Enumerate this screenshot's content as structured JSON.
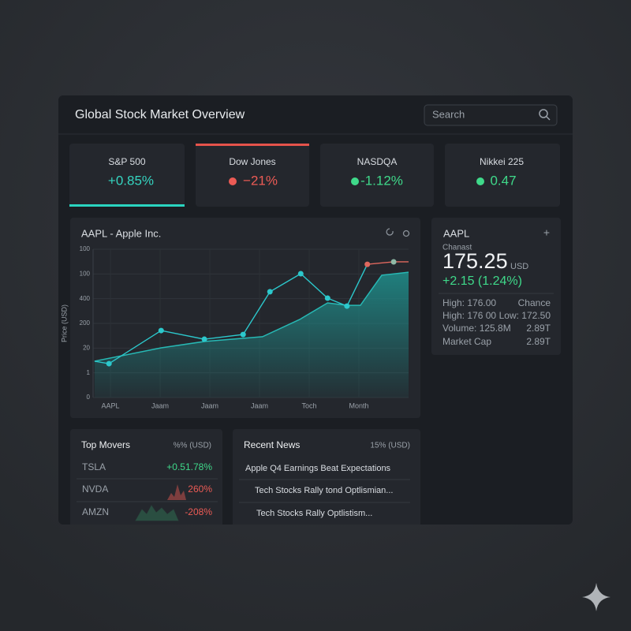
{
  "header": {
    "title": "Global Stock Market Overview",
    "search_placeholder": "Search"
  },
  "indices": [
    {
      "name": "S&P 500",
      "change": "+0.85%"
    },
    {
      "name": "Dow Jones",
      "change": "−21%"
    },
    {
      "name": "NASDQA",
      "change": "-1.12%"
    },
    {
      "name": "Nikkei 225",
      "change": "0.47"
    }
  ],
  "chart": {
    "type": "line",
    "title": "AAPL - Apple Inc.",
    "y_label": "Price (USD)",
    "ylim": [
      0,
      6
    ],
    "yticks": [
      0,
      1,
      {
        "value": 2,
        "label": "20"
      },
      {
        "value": 3,
        "label": "200"
      },
      {
        "value": 4,
        "label": "400"
      },
      {
        "value": 5,
        "label": "100"
      },
      {
        "value": 6,
        "label": "100"
      }
    ],
    "xlim": [
      -0.35,
      6
    ],
    "xticks": [
      {
        "value": 0,
        "label": "AAPL"
      },
      {
        "value": 1,
        "label": "Jaam"
      },
      {
        "value": 2,
        "label": "Jaam"
      },
      {
        "value": 3,
        "label": "Jaam"
      },
      {
        "value": 4,
        "label": "Toch"
      },
      {
        "value": 5,
        "label": "Month"
      }
    ],
    "line": {
      "color": "#2cc8cc",
      "tail_color": "#e0685e",
      "x": [
        -0.32,
        -0.03,
        1.02,
        1.89,
        2.67,
        3.21,
        3.83,
        4.37,
        4.76,
        5.17,
        5.7,
        6.0
      ],
      "values": [
        1.47,
        1.37,
        2.71,
        2.36,
        2.55,
        4.28,
        5.01,
        4.02,
        3.7,
        5.39,
        5.49,
        5.49
      ]
    },
    "area": {
      "color": "#1f8f8c",
      "x": [
        -0.32,
        1.02,
        1.9,
        3.06,
        3.81,
        4.37,
        4.76,
        5.03,
        5.46,
        6.0
      ],
      "values": [
        1.47,
        2.01,
        2.27,
        2.46,
        3.16,
        3.83,
        3.73,
        3.73,
        4.95,
        5.07
      ]
    }
  },
  "quote": {
    "symbol": "AAPL",
    "label": "Chanast",
    "price": "175.25",
    "currency": "USD",
    "change": "+2.15 (1.24%)",
    "stats": [
      [
        "High: 176.00",
        "Chance"
      ],
      [
        "High: 176 00",
        "Low: 172.50"
      ],
      [
        "Volume: 125.8M",
        "2.89T"
      ],
      [
        "Market Cap",
        "2.89T"
      ]
    ]
  },
  "movers": {
    "title": "Top Movers",
    "unit": "%% (USD)",
    "rows": [
      [
        "TSLA",
        "+0.51.78%"
      ],
      [
        "NVDA",
        "260%"
      ],
      [
        "AMZN",
        "-208%"
      ]
    ]
  },
  "news": {
    "title": "Recent News",
    "unit": "15% (USD)",
    "items": [
      "Apple Q4 Earnings Beat Expectations",
      "Tech Stocks Rally tond Optlismian...",
      "Tech Stocks Rally Optlistism..."
    ]
  }
}
